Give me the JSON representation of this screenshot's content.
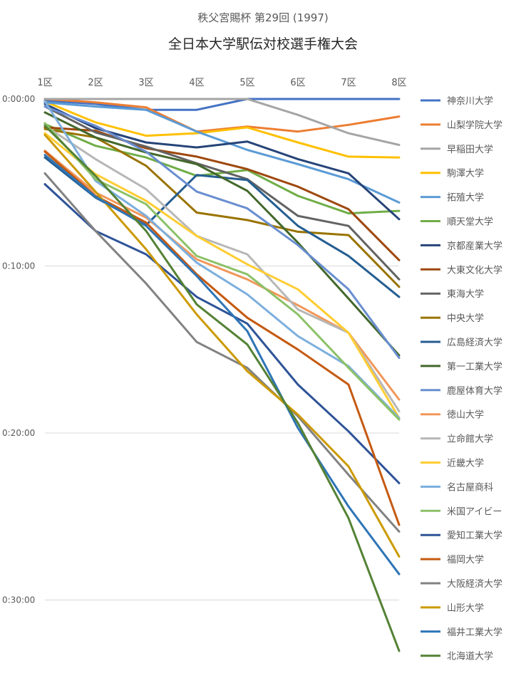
{
  "chart_data": {
    "type": "line",
    "subtitle": "秩父宮賜杯 第29回 (1997)",
    "title": "全日本大学駅伝対校選手権大会",
    "categories": [
      "1区",
      "2区",
      "3区",
      "4区",
      "5区",
      "6区",
      "7区",
      "8区"
    ],
    "y_tick_labels": [
      "0:00:00",
      "0:10:00",
      "0:20:00",
      "0:30:00"
    ],
    "y_ticks_minutes": [
      0,
      10,
      20,
      30
    ],
    "y_unit": "minutes behind leader",
    "ylim": [
      0,
      34.5
    ],
    "y_reversed": true,
    "legend_position": "right",
    "grid": "horizontal",
    "series": [
      {
        "name": "神奈川大学",
        "color": "#4472C4",
        "values": [
          0.1,
          0.3,
          0.65,
          0.65,
          0.0,
          0.0,
          0.0,
          0.0
        ]
      },
      {
        "name": "山梨学院大学",
        "color": "#ED7D31",
        "values": [
          0.0,
          0.2,
          0.5,
          1.95,
          1.65,
          1.95,
          1.55,
          1.05
        ]
      },
      {
        "name": "早稲田大学",
        "color": "#A5A5A5",
        "values": [
          0.0,
          0.0,
          0.0,
          0.0,
          0.0,
          0.95,
          2.05,
          2.75
        ]
      },
      {
        "name": "駒澤大学",
        "color": "#FFC000",
        "values": [
          0.15,
          1.4,
          2.2,
          2.05,
          1.7,
          2.6,
          3.45,
          3.5
        ]
      },
      {
        "name": "拓殖大学",
        "color": "#5B9BD5",
        "values": [
          0.2,
          0.45,
          0.65,
          1.95,
          3.05,
          3.9,
          4.8,
          6.2
        ]
      },
      {
        "name": "順天堂大学",
        "color": "#70AD47",
        "values": [
          1.5,
          2.8,
          3.5,
          4.6,
          4.25,
          5.8,
          6.85,
          6.7
        ]
      },
      {
        "name": "京都産業大学",
        "color": "#264478",
        "values": [
          0.3,
          1.75,
          2.6,
          2.9,
          2.55,
          3.6,
          4.45,
          7.2
        ]
      },
      {
        "name": "大東文化大学",
        "color": "#9E480E",
        "values": [
          1.7,
          1.9,
          2.95,
          3.45,
          4.2,
          5.25,
          6.6,
          9.65
        ]
      },
      {
        "name": "東海大学",
        "color": "#636363",
        "values": [
          0.45,
          2.0,
          2.85,
          3.85,
          4.8,
          7.0,
          7.6,
          10.8
        ]
      },
      {
        "name": "中央大学",
        "color": "#997300",
        "values": [
          1.8,
          2.3,
          4.0,
          6.8,
          7.25,
          7.95,
          8.15,
          11.25
        ]
      },
      {
        "name": "広島経済大学",
        "color": "#255E91",
        "values": [
          3.5,
          5.9,
          7.55,
          4.55,
          4.85,
          7.6,
          9.4,
          11.85
        ]
      },
      {
        "name": "第一工業大学",
        "color": "#43682B",
        "values": [
          0.8,
          2.3,
          3.2,
          3.9,
          5.5,
          8.6,
          11.95,
          15.35
        ]
      },
      {
        "name": "鹿屋体育大学",
        "color": "#698ED0",
        "values": [
          0.45,
          1.6,
          3.15,
          5.55,
          6.55,
          8.75,
          11.4,
          15.5
        ]
      },
      {
        "name": "徳山大学",
        "color": "#F1975A",
        "values": [
          3.1,
          5.6,
          7.1,
          9.6,
          10.8,
          12.35,
          14.0,
          18.0
        ]
      },
      {
        "name": "立命館大学",
        "color": "#B7B7B7",
        "values": [
          1.6,
          3.6,
          5.4,
          8.2,
          9.3,
          12.6,
          14.0,
          18.7
        ]
      },
      {
        "name": "近畿大学",
        "color": "#FFCD33",
        "values": [
          2.05,
          4.5,
          6.1,
          8.2,
          9.9,
          11.4,
          14.0,
          19.1
        ]
      },
      {
        "name": "名古屋商科",
        "color": "#7CAFDD",
        "values": [
          0.15,
          4.9,
          7.0,
          9.8,
          11.7,
          14.2,
          16.0,
          19.1
        ]
      },
      {
        "name": "米国アイビー",
        "color": "#8CC168",
        "values": [
          1.45,
          4.8,
          6.3,
          9.4,
          10.5,
          12.9,
          16.1,
          19.2
        ]
      },
      {
        "name": "愛知工業大学",
        "color": "#2E5397",
        "values": [
          5.1,
          7.9,
          9.3,
          11.85,
          13.45,
          17.1,
          19.9,
          23.0
        ]
      },
      {
        "name": "福岡大学",
        "color": "#C55A11",
        "values": [
          3.15,
          5.8,
          7.4,
          10.5,
          13.1,
          15.0,
          17.1,
          25.5
        ]
      },
      {
        "name": "大阪経済大学",
        "color": "#828282",
        "values": [
          4.45,
          7.9,
          11.05,
          14.55,
          16.1,
          19.0,
          22.5,
          25.9
        ]
      },
      {
        "name": "山形大学",
        "color": "#CC9A00",
        "values": [
          2.15,
          5.55,
          9.0,
          12.9,
          16.3,
          18.9,
          22.0,
          27.4
        ]
      },
      {
        "name": "福井工業大学",
        "color": "#2E75B6",
        "values": [
          3.35,
          5.85,
          7.6,
          10.6,
          13.9,
          19.7,
          24.4,
          28.45
        ]
      },
      {
        "name": "北海道大学",
        "color": "#548235",
        "values": [
          1.6,
          4.6,
          7.9,
          12.3,
          14.7,
          19.4,
          25.1,
          33.05
        ]
      }
    ]
  }
}
